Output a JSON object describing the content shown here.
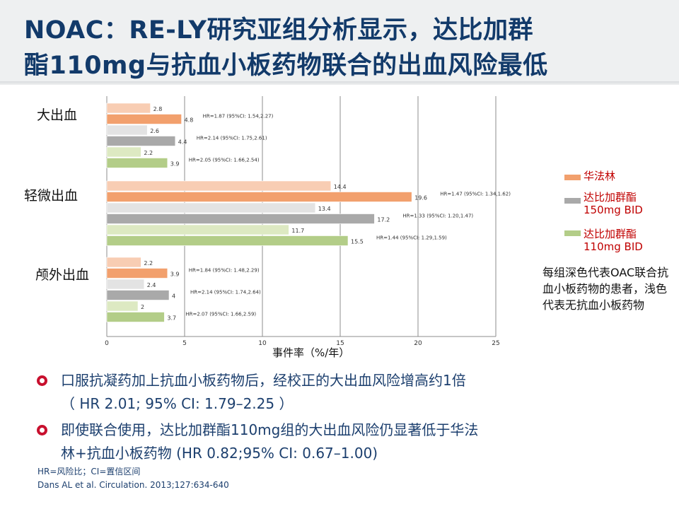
{
  "title": {
    "line1": "NOAC：RE-LY研究亚组分析显示，达比加群",
    "line2": "酯110mg与抗血小板药物联合的出血风险最低"
  },
  "chart_data": {
    "type": "bar",
    "orientation": "horizontal",
    "xlabel": "事件率（%/年）",
    "xlim": [
      0,
      25
    ],
    "xticks": [
      0,
      5,
      10,
      15,
      20,
      25
    ],
    "grid": "vertical",
    "legend_position": "right",
    "categories": [
      "大出血",
      "轻微出血",
      "颅外出血"
    ],
    "series": [
      {
        "name": "华法林",
        "group": "warfarin",
        "shade": "light",
        "color": "#f8cdb3",
        "values": [
          2.8,
          14.4,
          2.2
        ]
      },
      {
        "name": "华法林",
        "group": "warfarin",
        "shade": "dark",
        "color": "#f2a06d",
        "values": [
          4.8,
          19.6,
          3.9
        ]
      },
      {
        "name": "达比加群酯150mg BID",
        "group": "d150",
        "shade": "light",
        "color": "#e3e3e3",
        "values": [
          2.6,
          13.4,
          2.4
        ]
      },
      {
        "name": "达比加群酯150mg BID",
        "group": "d150",
        "shade": "dark",
        "color": "#a9a9a9",
        "values": [
          4.4,
          17.2,
          4
        ]
      },
      {
        "name": "达比加群酯110mg BID",
        "group": "d110",
        "shade": "light",
        "color": "#dde9c2",
        "values": [
          2.2,
          11.7,
          2
        ]
      },
      {
        "name": "达比加群酯110mg BID",
        "group": "d110",
        "shade": "dark",
        "color": "#b3cd88",
        "values": [
          3.9,
          15.5,
          3.7
        ]
      }
    ],
    "value_labels": [
      [
        "2.8",
        "14.4",
        "2.2"
      ],
      [
        "4.8",
        "19.6",
        "3.9"
      ],
      [
        "2.6",
        "13.4",
        "2.4"
      ],
      [
        "4.4",
        "17.2",
        "4"
      ],
      [
        "2.2",
        "11.7",
        "2"
      ],
      [
        "3.9",
        "15.5",
        "3.7"
      ]
    ],
    "hr_annotations": [
      [
        "HR=1.87 (95%CI: 1.54,2.27)",
        "HR=2.14 (95%CI: 1.75,2.61)",
        "HR=2.05 (95%CI: 1.66,2.54)"
      ],
      [
        "HR=1.47 (95%CI: 1.34,1.62)",
        "HR=1.33 (95%CI: 1.20,1.47)",
        "HR=1.44 (95%CI: 1.29,1.59)"
      ],
      [
        "HR=1.84 (95%CI: 1.48,2.29)",
        "HR=2.14 (95%CI: 1.74,2.64)",
        "HR=2.07 (95%CI: 1.66,2.59)"
      ]
    ]
  },
  "legend": {
    "items": [
      {
        "label_line1": "华法林",
        "label_line2": "",
        "color": "#f2a06d",
        "text_color": "#c00000"
      },
      {
        "label_line1": "达比加群酯",
        "label_line2": "150mg BID",
        "color": "#a9a9a9",
        "text_color": "#c00000"
      },
      {
        "label_line1": "达比加群酯",
        "label_line2": "110mg BID",
        "color": "#b3cd88",
        "text_color": "#c00000"
      }
    ],
    "note": "每组深色代表OAC联合抗血小板药物的患者，浅色代表无抗血小板药物"
  },
  "bullets": [
    {
      "line1": "口服抗凝药加上抗血小板药物后，经校正的大出血风险增高约1倍",
      "line2": "（ HR 2.01; 95% CI: 1.79–2.25 ）"
    },
    {
      "line1": "即使联合使用，达比加群酯110mg组的大出血风险仍显著低于华法",
      "line2": "林+抗血小板药物 (HR 0.82;95% CI: 0.67–1.00)"
    }
  ],
  "footnotes": {
    "abbrev": "HR=风险比；CI=置信区间",
    "reference": "Dans AL et al. Circulation. 2013;127:634-640"
  },
  "colors": {
    "title": "#123a6a",
    "accent_red": "#c8102e",
    "body_text": "#1c3f6e"
  }
}
